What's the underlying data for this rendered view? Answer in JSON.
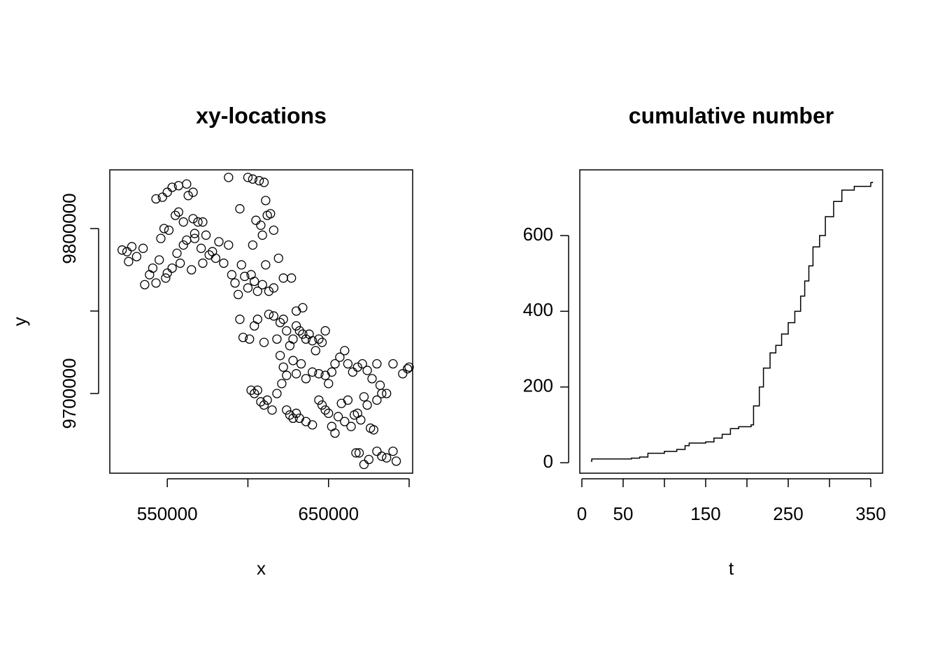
{
  "chart_data": [
    {
      "type": "scatter",
      "title": "xy-locations",
      "x_label": "x",
      "y_label": "y",
      "color": "#000000",
      "xlim": [
        514348,
        702174
      ],
      "ylim": [
        9651695,
        9835593
      ],
      "xticks": [
        {
          "value": 550000,
          "label": "550000"
        },
        {
          "value": 600000,
          "label": null
        },
        {
          "value": 650000,
          "label": "650000"
        },
        {
          "value": 700000,
          "label": null
        }
      ],
      "yticks": [
        {
          "value": 9700000,
          "label": "9700000"
        },
        {
          "value": 9750000,
          "label": null
        },
        {
          "value": 9800000,
          "label": "9800000"
        }
      ],
      "x": [
        522000,
        525000,
        526000,
        528000,
        531000,
        535000,
        536000,
        539000,
        541000,
        543000,
        545000,
        546000,
        548000,
        550000,
        549000,
        551000,
        553000,
        555000,
        556000,
        558000,
        560000,
        562000,
        565000,
        567000,
        569000,
        571000,
        572000,
        574000,
        576000,
        578000,
        580000,
        582000,
        585000,
        588000,
        590000,
        592000,
        594000,
        596000,
        598000,
        600000,
        602000,
        604000,
        606000,
        609000,
        611000,
        613000,
        616000,
        619000,
        622000,
        543000,
        547000,
        550000,
        553000,
        557000,
        562000,
        563000,
        566000,
        557000,
        560000,
        566000,
        572000,
        567000,
        588000,
        595000,
        600000,
        603000,
        607000,
        610000,
        611000,
        605000,
        608000,
        612000,
        614000,
        616000,
        609000,
        603000,
        595000,
        597000,
        601000,
        604000,
        606000,
        610000,
        613000,
        616000,
        618000,
        620000,
        622000,
        624000,
        626000,
        628000,
        630000,
        632000,
        634000,
        636000,
        638000,
        640000,
        642000,
        644000,
        646000,
        648000,
        627000,
        630000,
        634000,
        620000,
        622000,
        624000,
        628000,
        630000,
        633000,
        636000,
        640000,
        644000,
        648000,
        650000,
        652000,
        654000,
        657000,
        660000,
        662000,
        665000,
        668000,
        671000,
        674000,
        677000,
        680000,
        682000,
        686000,
        690000,
        696000,
        699000,
        700000,
        602000,
        604000,
        606000,
        608000,
        610000,
        612000,
        615000,
        618000,
        621000,
        624000,
        626000,
        628000,
        630000,
        632000,
        636000,
        640000,
        644000,
        646000,
        648000,
        650000,
        652000,
        654000,
        656000,
        658000,
        660000,
        662000,
        664000,
        666000,
        668000,
        670000,
        672000,
        674000,
        676000,
        678000,
        680000,
        683000,
        667000,
        669000,
        672000,
        675000,
        680000,
        683000,
        686000,
        690000,
        692000
      ],
      "values": [
        9787000,
        9786000,
        9780000,
        9789000,
        9783000,
        9788000,
        9766000,
        9772000,
        9776000,
        9767000,
        9781000,
        9794000,
        9800000,
        9773000,
        9770000,
        9799000,
        9776000,
        9808000,
        9785000,
        9779000,
        9790000,
        9793000,
        9775000,
        9794000,
        9804000,
        9788000,
        9779000,
        9796000,
        9784000,
        9786000,
        9782000,
        9792000,
        9779000,
        9790000,
        9772000,
        9767000,
        9760000,
        9778000,
        9771000,
        9764000,
        9772000,
        9768000,
        9762000,
        9766000,
        9778000,
        9762000,
        9764000,
        9782000,
        9770000,
        9818000,
        9819000,
        9822000,
        9825000,
        9826000,
        9827000,
        9820000,
        9822000,
        9810000,
        9804000,
        9806000,
        9804000,
        9797000,
        9831000,
        9812000,
        9831000,
        9830000,
        9829000,
        9828000,
        9817000,
        9805000,
        9802000,
        9808000,
        9809000,
        9799000,
        9796000,
        9790000,
        9745000,
        9734000,
        9733000,
        9741000,
        9745000,
        9731000,
        9748000,
        9747000,
        9733000,
        9743000,
        9745000,
        9738000,
        9729000,
        9733000,
        9741000,
        9738000,
        9736000,
        9733000,
        9736000,
        9732000,
        9726000,
        9733000,
        9731000,
        9738000,
        9770000,
        9750000,
        9752000,
        9723000,
        9716000,
        9711000,
        9720000,
        9712000,
        9718000,
        9709000,
        9713000,
        9712000,
        9711000,
        9706000,
        9713000,
        9718000,
        9722000,
        9726000,
        9718000,
        9713000,
        9716000,
        9718000,
        9714000,
        9709000,
        9718000,
        9705000,
        9700000,
        9718000,
        9712000,
        9715000,
        9716000,
        9702000,
        9700000,
        9702000,
        9695000,
        9693000,
        9696000,
        9690000,
        9700000,
        9706000,
        9690000,
        9687000,
        9685000,
        9688000,
        9685000,
        9683000,
        9681000,
        9696000,
        9693000,
        9690000,
        9688000,
        9680000,
        9676000,
        9686000,
        9694000,
        9683000,
        9696000,
        9680000,
        9687000,
        9688000,
        9684000,
        9698000,
        9693000,
        9679000,
        9678000,
        9696000,
        9700000,
        9664000,
        9664000,
        9657000,
        9660000,
        9665000,
        9662000,
        9661000,
        9665000,
        9659000
      ]
    },
    {
      "type": "line",
      "step": true,
      "title": "cumulative number",
      "x_label": "t",
      "color": "#000000",
      "xlim": [
        -2.5,
        364.4
      ],
      "ylim": [
        -27.7,
        773.6
      ],
      "xticks": [
        0,
        50,
        {
          "value": 100,
          "label": null
        },
        150,
        {
          "value": 200,
          "label": null
        },
        250,
        {
          "value": 300,
          "label": null
        },
        350
      ],
      "yticks": [
        0,
        200,
        400,
        600
      ],
      "x": [
        11,
        12,
        50,
        60,
        70,
        80,
        100,
        115,
        125,
        130,
        150,
        160,
        170,
        180,
        190,
        205,
        208,
        215,
        220,
        228,
        235,
        242,
        250,
        258,
        265,
        270,
        275,
        280,
        288,
        295,
        305,
        315,
        330,
        350,
        352
      ],
      "values": [
        4,
        10,
        10,
        12,
        15,
        25,
        30,
        35,
        45,
        52,
        55,
        65,
        75,
        90,
        95,
        100,
        150,
        200,
        250,
        290,
        310,
        340,
        370,
        400,
        440,
        480,
        520,
        570,
        600,
        650,
        690,
        720,
        730,
        740,
        742
      ]
    }
  ]
}
